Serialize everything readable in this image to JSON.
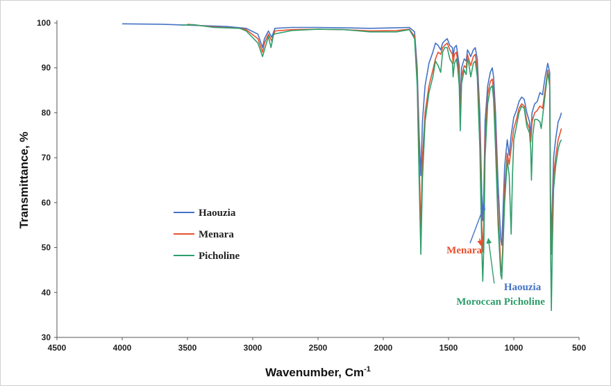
{
  "chart_data": {
    "type": "line",
    "xlabel": "Wavenumber, Cm",
    "xlabel_sup": "-1",
    "ylabel": "Transmittance, %",
    "xlim": [
      4500,
      500
    ],
    "ylim": [
      30,
      100
    ],
    "x_reversed": true,
    "grid": false,
    "legend_position": "middle-left",
    "x_ticks": [
      4500,
      4000,
      3500,
      3000,
      2500,
      2000,
      1500,
      1000,
      500
    ],
    "y_ticks": [
      30,
      40,
      50,
      60,
      70,
      80,
      90,
      100
    ],
    "series": [
      {
        "name": "Haouzia",
        "color": "#4472C4",
        "points": [
          [
            4000,
            99.8
          ],
          [
            3700,
            99.7
          ],
          [
            3500,
            99.5
          ],
          [
            3200,
            99.2
          ],
          [
            3050,
            98.8
          ],
          [
            2960,
            97.5
          ],
          [
            2925,
            94.5
          ],
          [
            2910,
            96.5
          ],
          [
            2880,
            98.2
          ],
          [
            2855,
            96.8
          ],
          [
            2830,
            98.8
          ],
          [
            2700,
            99.0
          ],
          [
            2500,
            99.0
          ],
          [
            2300,
            98.9
          ],
          [
            2100,
            98.8
          ],
          [
            1900,
            98.9
          ],
          [
            1800,
            99.0
          ],
          [
            1760,
            98.0
          ],
          [
            1740,
            90.0
          ],
          [
            1725,
            75.0
          ],
          [
            1712,
            66.0
          ],
          [
            1700,
            78.0
          ],
          [
            1680,
            86.0
          ],
          [
            1650,
            91.0
          ],
          [
            1620,
            93.5
          ],
          [
            1600,
            95.5
          ],
          [
            1580,
            95.0
          ],
          [
            1560,
            94.0
          ],
          [
            1545,
            95.5
          ],
          [
            1530,
            96.0
          ],
          [
            1510,
            96.5
          ],
          [
            1490,
            95.0
          ],
          [
            1470,
            94.5
          ],
          [
            1465,
            92.5
          ],
          [
            1455,
            94.5
          ],
          [
            1440,
            95.0
          ],
          [
            1430,
            93.0
          ],
          [
            1418,
            90.5
          ],
          [
            1410,
            82.0
          ],
          [
            1400,
            90.0
          ],
          [
            1380,
            92.0
          ],
          [
            1365,
            91.5
          ],
          [
            1355,
            94.0
          ],
          [
            1345,
            93.5
          ],
          [
            1330,
            92.5
          ],
          [
            1310,
            94.0
          ],
          [
            1295,
            94.5
          ],
          [
            1280,
            92.0
          ],
          [
            1260,
            80.0
          ],
          [
            1245,
            62.0
          ],
          [
            1238,
            56.0
          ],
          [
            1230,
            62.0
          ],
          [
            1220,
            78.0
          ],
          [
            1200,
            86.0
          ],
          [
            1180,
            89.0
          ],
          [
            1165,
            90.0
          ],
          [
            1155,
            88.0
          ],
          [
            1140,
            80.0
          ],
          [
            1120,
            64.0
          ],
          [
            1100,
            52.0
          ],
          [
            1092,
            50.5
          ],
          [
            1085,
            56.0
          ],
          [
            1070,
            68.0
          ],
          [
            1050,
            74.0
          ],
          [
            1035,
            70.5
          ],
          [
            1020,
            75.0
          ],
          [
            1000,
            79.0
          ],
          [
            980,
            80.5
          ],
          [
            960,
            82.5
          ],
          [
            940,
            83.5
          ],
          [
            920,
            83.0
          ],
          [
            900,
            80.0
          ],
          [
            880,
            78.0
          ],
          [
            870,
            75.0
          ],
          [
            860,
            80.0
          ],
          [
            840,
            82.0
          ],
          [
            820,
            82.5
          ],
          [
            800,
            84.5
          ],
          [
            780,
            84.0
          ],
          [
            760,
            88.0
          ],
          [
            740,
            91.0
          ],
          [
            725,
            89.0
          ],
          [
            718,
            60.0
          ],
          [
            712,
            52.0
          ],
          [
            705,
            60.0
          ],
          [
            695,
            70.0
          ],
          [
            680,
            74.0
          ],
          [
            660,
            78.0
          ],
          [
            645,
            79.0
          ],
          [
            635,
            80.0
          ]
        ]
      },
      {
        "name": "Menara",
        "color": "#E8502E",
        "points": [
          [
            3500,
            99.7
          ],
          [
            3300,
            99.1
          ],
          [
            3100,
            98.8
          ],
          [
            3050,
            98.5
          ],
          [
            2960,
            96.5
          ],
          [
            2925,
            93.5
          ],
          [
            2910,
            95.5
          ],
          [
            2880,
            97.5
          ],
          [
            2855,
            96.0
          ],
          [
            2830,
            98.2
          ],
          [
            2700,
            98.5
          ],
          [
            2500,
            98.6
          ],
          [
            2300,
            98.5
          ],
          [
            2100,
            98.2
          ],
          [
            1900,
            98.3
          ],
          [
            1800,
            98.6
          ],
          [
            1760,
            97.0
          ],
          [
            1740,
            88.0
          ],
          [
            1725,
            70.0
          ],
          [
            1712,
            53.5
          ],
          [
            1700,
            70.0
          ],
          [
            1680,
            80.0
          ],
          [
            1650,
            86.0
          ],
          [
            1620,
            89.5
          ],
          [
            1600,
            92.0
          ],
          [
            1580,
            93.5
          ],
          [
            1560,
            93.0
          ],
          [
            1545,
            94.5
          ],
          [
            1530,
            95.0
          ],
          [
            1510,
            95.5
          ],
          [
            1490,
            94.0
          ],
          [
            1470,
            93.0
          ],
          [
            1465,
            91.0
          ],
          [
            1455,
            93.0
          ],
          [
            1440,
            93.5
          ],
          [
            1430,
            91.5
          ],
          [
            1418,
            88.5
          ],
          [
            1410,
            78.0
          ],
          [
            1400,
            88.0
          ],
          [
            1380,
            90.5
          ],
          [
            1365,
            90.0
          ],
          [
            1355,
            93.0
          ],
          [
            1345,
            92.0
          ],
          [
            1330,
            90.5
          ],
          [
            1310,
            92.5
          ],
          [
            1295,
            93.0
          ],
          [
            1280,
            90.0
          ],
          [
            1260,
            76.0
          ],
          [
            1245,
            55.0
          ],
          [
            1238,
            49.0
          ],
          [
            1230,
            55.0
          ],
          [
            1220,
            74.0
          ],
          [
            1200,
            84.0
          ],
          [
            1180,
            87.0
          ],
          [
            1165,
            87.5
          ],
          [
            1155,
            85.0
          ],
          [
            1140,
            76.0
          ],
          [
            1120,
            58.0
          ],
          [
            1100,
            46.0
          ],
          [
            1092,
            44.5
          ],
          [
            1085,
            50.0
          ],
          [
            1070,
            63.0
          ],
          [
            1050,
            71.0
          ],
          [
            1035,
            68.5
          ],
          [
            1020,
            72.0
          ],
          [
            1000,
            76.5
          ],
          [
            980,
            78.5
          ],
          [
            960,
            81.0
          ],
          [
            940,
            82.0
          ],
          [
            920,
            81.5
          ],
          [
            900,
            78.0
          ],
          [
            880,
            76.5
          ],
          [
            870,
            73.5
          ],
          [
            860,
            78.0
          ],
          [
            840,
            80.0
          ],
          [
            820,
            80.5
          ],
          [
            800,
            81.5
          ],
          [
            780,
            81.0
          ],
          [
            760,
            85.0
          ],
          [
            740,
            89.5
          ],
          [
            725,
            87.0
          ],
          [
            718,
            56.0
          ],
          [
            712,
            48.5
          ],
          [
            705,
            56.0
          ],
          [
            695,
            66.0
          ],
          [
            680,
            70.0
          ],
          [
            660,
            74.0
          ],
          [
            645,
            75.5
          ],
          [
            635,
            76.5
          ]
        ]
      },
      {
        "name": "Picholine",
        "color": "#2E9E6B",
        "points": [
          [
            3550,
            99.5
          ],
          [
            3450,
            99.6
          ],
          [
            3300,
            99.0
          ],
          [
            3100,
            98.8
          ],
          [
            3050,
            98.2
          ],
          [
            2960,
            95.5
          ],
          [
            2925,
            92.5
          ],
          [
            2910,
            94.0
          ],
          [
            2880,
            97.0
          ],
          [
            2860,
            94.5
          ],
          [
            2840,
            97.5
          ],
          [
            2700,
            98.3
          ],
          [
            2500,
            98.6
          ],
          [
            2300,
            98.5
          ],
          [
            2100,
            98.0
          ],
          [
            1900,
            98.0
          ],
          [
            1800,
            98.5
          ],
          [
            1760,
            96.5
          ],
          [
            1740,
            86.0
          ],
          [
            1725,
            65.0
          ],
          [
            1712,
            48.5
          ],
          [
            1700,
            65.0
          ],
          [
            1680,
            78.0
          ],
          [
            1650,
            84.5
          ],
          [
            1620,
            88.0
          ],
          [
            1600,
            91.5
          ],
          [
            1580,
            90.5
          ],
          [
            1560,
            89.0
          ],
          [
            1545,
            93.5
          ],
          [
            1530,
            94.5
          ],
          [
            1510,
            94.5
          ],
          [
            1490,
            92.0
          ],
          [
            1470,
            91.0
          ],
          [
            1465,
            88.0
          ],
          [
            1455,
            91.0
          ],
          [
            1440,
            92.0
          ],
          [
            1430,
            90.0
          ],
          [
            1418,
            86.0
          ],
          [
            1410,
            76.0
          ],
          [
            1400,
            86.5
          ],
          [
            1380,
            89.5
          ],
          [
            1365,
            88.5
          ],
          [
            1355,
            92.0
          ],
          [
            1345,
            91.0
          ],
          [
            1330,
            88.0
          ],
          [
            1310,
            91.0
          ],
          [
            1295,
            91.5
          ],
          [
            1280,
            88.0
          ],
          [
            1260,
            72.0
          ],
          [
            1245,
            50.0
          ],
          [
            1238,
            42.5
          ],
          [
            1230,
            50.0
          ],
          [
            1220,
            70.0
          ],
          [
            1200,
            82.0
          ],
          [
            1180,
            85.5
          ],
          [
            1165,
            86.0
          ],
          [
            1155,
            83.0
          ],
          [
            1140,
            72.0
          ],
          [
            1120,
            55.0
          ],
          [
            1100,
            44.0
          ],
          [
            1092,
            43.0
          ],
          [
            1085,
            48.0
          ],
          [
            1070,
            60.0
          ],
          [
            1050,
            69.5
          ],
          [
            1035,
            66.0
          ],
          [
            1020,
            53.0
          ],
          [
            1010,
            66.0
          ],
          [
            1000,
            74.0
          ],
          [
            980,
            77.0
          ],
          [
            960,
            80.0
          ],
          [
            940,
            81.5
          ],
          [
            920,
            81.0
          ],
          [
            900,
            77.0
          ],
          [
            880,
            75.5
          ],
          [
            870,
            72.0
          ],
          [
            865,
            65.0
          ],
          [
            855,
            75.0
          ],
          [
            840,
            78.5
          ],
          [
            820,
            78.5
          ],
          [
            800,
            78.0
          ],
          [
            790,
            76.5
          ],
          [
            780,
            79.0
          ],
          [
            760,
            84.0
          ],
          [
            740,
            89.0
          ],
          [
            725,
            86.0
          ],
          [
            718,
            50.0
          ],
          [
            712,
            36.0
          ],
          [
            705,
            50.0
          ],
          [
            695,
            63.0
          ],
          [
            680,
            68.0
          ],
          [
            660,
            72.0
          ],
          [
            645,
            73.5
          ],
          [
            635,
            74.0
          ]
        ]
      }
    ],
    "annotations": [
      {
        "text": "Menara",
        "color": "#E8502E",
        "text_at": [
          1515,
          48.7
        ],
        "arrow_to": [
          1252,
          50.5
        ],
        "arrow_from": [
          1262,
          52
        ]
      },
      {
        "text": "Haouzia",
        "color": "#4472C4",
        "text_at": [
          1075,
          40.5
        ],
        "arrow_to": [
          1225,
          59.5
        ],
        "arrow_from": [
          1335,
          51
        ]
      },
      {
        "text": "Moroccan Picholine",
        "color": "#2E9E6B",
        "text_at": [
          1440,
          37.3
        ],
        "arrow_to": [
          1195,
          52
        ],
        "arrow_from": [
          1150,
          42
        ]
      }
    ]
  }
}
